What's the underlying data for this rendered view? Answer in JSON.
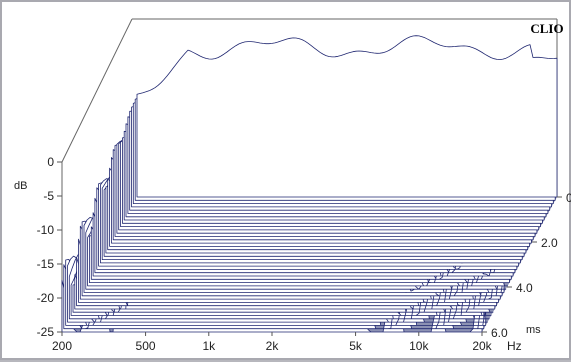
{
  "chart_data": {
    "type": "waterfall",
    "brand": "CLIO",
    "y_axis": {
      "unit": "dB",
      "ticks": [
        "0",
        "-5",
        "-10",
        "-15",
        "-20",
        "-25"
      ],
      "range": [
        -25,
        0
      ]
    },
    "x_axis": {
      "unit": "Hz",
      "ticks": [
        {
          "label": "200",
          "hz": 200
        },
        {
          "label": "500",
          "hz": 500
        },
        {
          "label": "1k",
          "hz": 1000
        },
        {
          "label": "2k",
          "hz": 2000
        },
        {
          "label": "5k",
          "hz": 5000
        },
        {
          "label": "10k",
          "hz": 10000
        },
        {
          "label": "20k",
          "hz": 20000
        }
      ],
      "scale": "log",
      "range": [
        200,
        20000
      ]
    },
    "z_axis": {
      "unit": "ms",
      "ticks": [
        {
          "label": "0",
          "ms": 0
        },
        {
          "label": "2.0",
          "ms": 2.0
        },
        {
          "label": "4.0",
          "ms": 4.0
        },
        {
          "label": "6.0",
          "ms": 6.0
        }
      ],
      "range": [
        0,
        6.0
      ]
    },
    "colors": {
      "trace": "#1f2670",
      "floor": "#8d92b4",
      "wall_line": "#666666"
    }
  }
}
